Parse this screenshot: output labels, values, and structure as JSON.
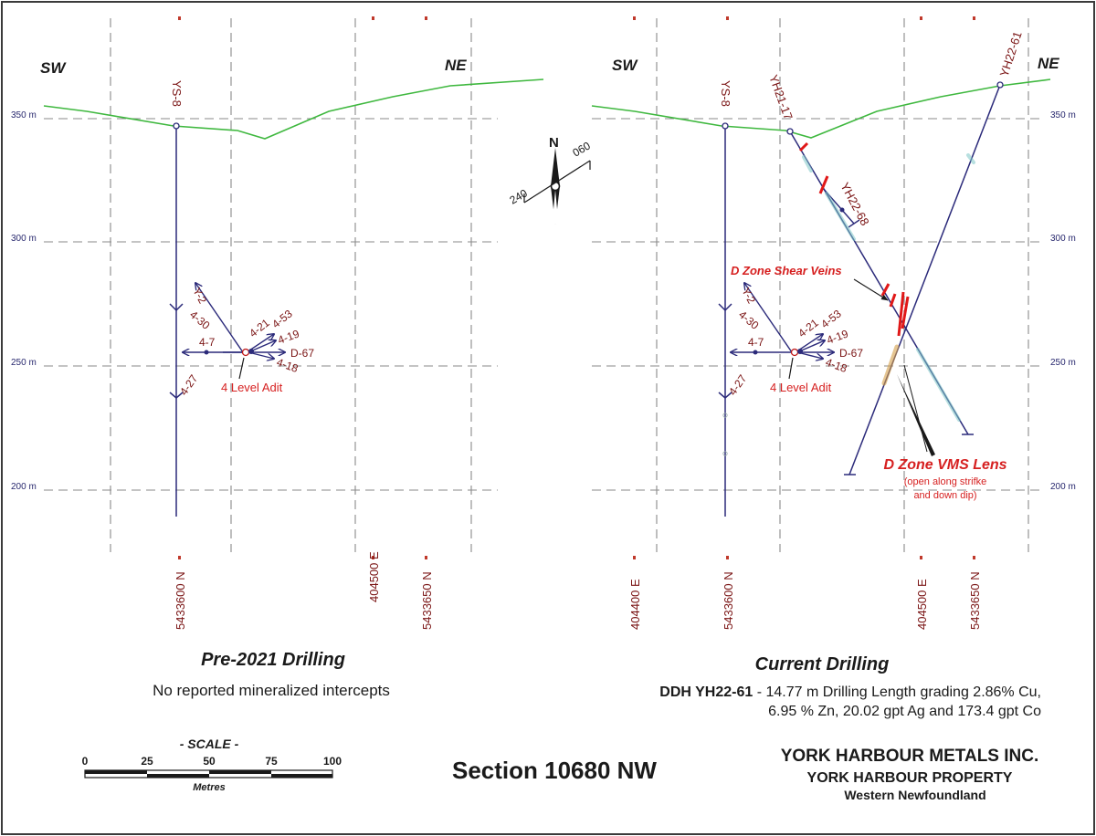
{
  "colors": {
    "frame": "#3a3a3a",
    "grid": "#8a8a8a",
    "topo": "#3fb83f",
    "drill": "#2b2a7a",
    "label_dark_red": "#7a1414",
    "label_red": "#d62020",
    "elev_blue": "#28286e",
    "text": "#1a1a1a",
    "vein_red": "#e01818"
  },
  "left_panel": {
    "sw": "SW",
    "ne": "NE",
    "elevations": [
      "350 m",
      "300 m",
      "250 m",
      "200 m"
    ],
    "hole_ys8": "YS-8",
    "adit_holes": [
      "Y-2",
      "4-30",
      "4-7",
      "4-21",
      "4-53",
      "4-19",
      "D-67",
      "4-18",
      "4-27"
    ],
    "adit_label": "4 Level Adit",
    "coords": [
      "5433600 N",
      "404500 E",
      "5433650 N"
    ],
    "title": "Pre-2021 Drilling",
    "subtitle": "No reported mineralized intercepts"
  },
  "right_panel": {
    "sw": "SW",
    "ne": "NE",
    "elevations": [
      "350 m",
      "300 m",
      "250 m",
      "200 m"
    ],
    "hole_ys8": "YS-8",
    "hole_yh21_17": "YH21-17",
    "hole_yh22_61": "YH22-61",
    "hole_yh22_68": "YH22-68",
    "adit_holes": [
      "Y-2",
      "4-30",
      "4-7",
      "4-21",
      "4-53",
      "4-19",
      "D-67",
      "4-18",
      "4-27"
    ],
    "adit_label": "4 Level Adit",
    "shear_veins": "D Zone Shear Veins",
    "vms_lens": "D Zone VMS Lens",
    "vms_note_1": "(open along strifke",
    "vms_note_2": "and down dip)",
    "coords": [
      "404400 E",
      "5433600 N",
      "404500 E",
      "5433650 N"
    ],
    "title": "Current Drilling",
    "result_bold": "DDH YH22-61",
    "result_line1": " - 14.77 m Drilling Length grading 2.86% Cu,",
    "result_line2": "6.95 % Zn, 20.02 gpt Ag and 173.4 gpt Co"
  },
  "north_arrow": {
    "n": "N",
    "az_a": "060",
    "az_b": "240"
  },
  "scale": {
    "title": "- SCALE -",
    "ticks": [
      "0",
      "25",
      "50",
      "75",
      "100"
    ],
    "units": "Metres"
  },
  "section_title": "Section 10680 NW",
  "company": {
    "name": "YORK HARBOUR METALS INC.",
    "property": "YORK HARBOUR PROPERTY",
    "region": "Western Newfoundland"
  }
}
